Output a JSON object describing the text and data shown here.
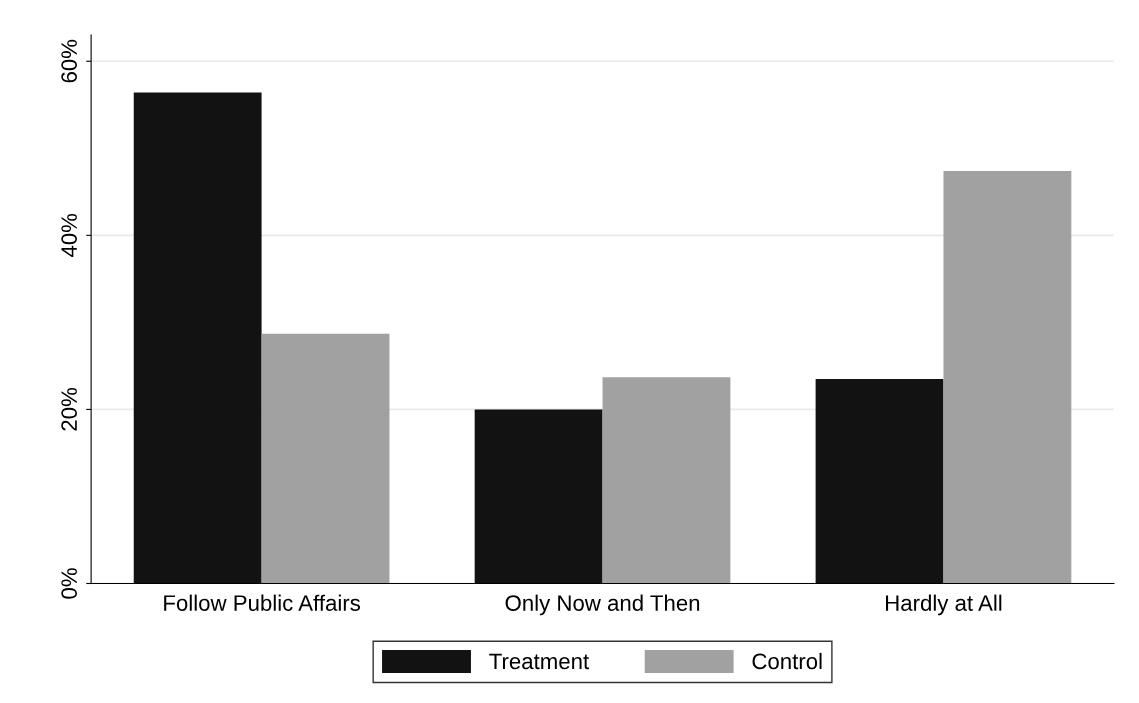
{
  "chart_data": {
    "type": "bar",
    "categories": [
      "Follow Public Affairs",
      "Only Now and Then",
      "Hardly at All"
    ],
    "series": [
      {
        "name": "Treatment",
        "color": "#121212",
        "values": [
          56.4,
          20.0,
          23.5
        ]
      },
      {
        "name": "Control",
        "color": "#a1a1a1",
        "values": [
          28.7,
          23.7,
          47.4
        ]
      }
    ],
    "ylim": [
      0,
      63
    ],
    "yticks": [
      {
        "value": 0,
        "label": "0%"
      },
      {
        "value": 20,
        "label": "20%"
      },
      {
        "value": 40,
        "label": "40%"
      },
      {
        "value": 60,
        "label": "60%"
      }
    ],
    "grid": "y",
    "legend": "bottom"
  }
}
